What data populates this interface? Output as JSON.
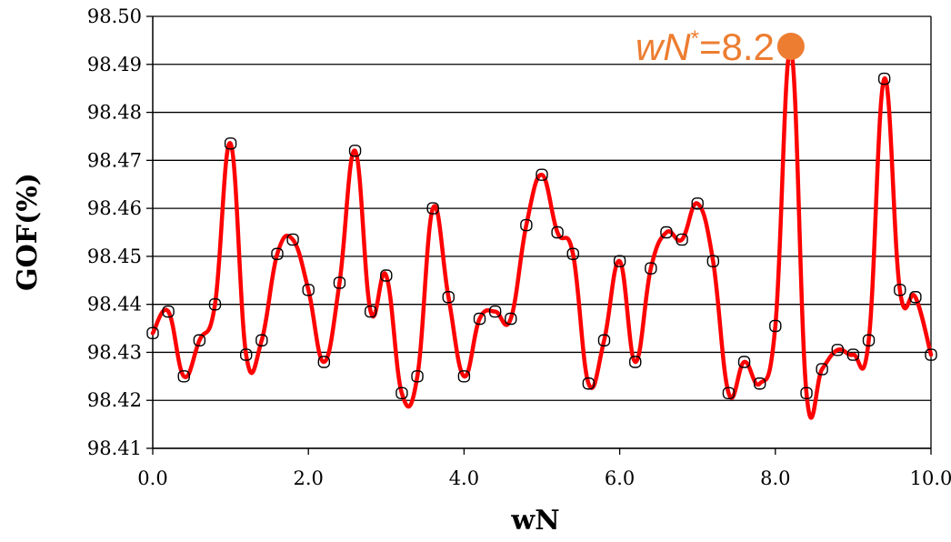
{
  "chart_data": {
    "type": "line",
    "xlabel": "wN",
    "ylabel": "GOF(%)",
    "xlim": [
      0,
      10
    ],
    "ylim": [
      98.41,
      98.5
    ],
    "x_ticks": [
      "0.0",
      "2.0",
      "4.0",
      "6.0",
      "8.0",
      "10.0"
    ],
    "y_ticks": [
      "98.41",
      "98.42",
      "98.43",
      "98.44",
      "98.45",
      "98.46",
      "98.47",
      "98.48",
      "98.49",
      "98.50"
    ],
    "grid": "horizontal",
    "line_color": "#FF0000",
    "marker_color": "#000000",
    "series": [
      {
        "x": [
          0.0,
          0.2,
          0.4,
          0.6,
          0.8,
          1.0,
          1.2,
          1.4,
          1.6,
          1.8,
          2.0,
          2.2,
          2.4,
          2.6,
          2.8,
          3.0,
          3.2,
          3.4,
          3.6,
          3.8,
          4.0,
          4.2,
          4.4,
          4.6,
          4.8,
          5.0,
          5.2,
          5.4,
          5.6,
          5.8,
          6.0,
          6.2,
          6.4,
          6.6,
          6.8,
          7.0,
          7.2,
          7.4,
          7.6,
          7.8,
          8.0,
          8.2,
          8.4,
          8.6,
          8.8,
          9.0,
          9.2,
          9.4,
          9.6,
          9.8,
          10.0
        ],
        "y": [
          98.434,
          98.4385,
          98.425,
          98.4325,
          98.44,
          98.4735,
          98.4295,
          98.4325,
          98.4505,
          98.4535,
          98.443,
          98.428,
          98.4445,
          98.472,
          98.4385,
          98.446,
          98.4215,
          98.425,
          98.46,
          98.4415,
          98.425,
          98.437,
          98.4385,
          98.437,
          98.4565,
          98.467,
          98.455,
          98.4505,
          98.4235,
          98.4325,
          98.449,
          98.428,
          98.4475,
          98.455,
          98.4535,
          98.461,
          98.449,
          98.4215,
          98.428,
          98.4235,
          98.4355,
          98.493,
          98.4215,
          98.4265,
          98.4305,
          98.4295,
          98.4325,
          98.487,
          98.443,
          98.4415,
          98.4295
        ]
      }
    ],
    "annotation": {
      "text_italic": "wN",
      "superscript": "*",
      "text_rest": "=8.2",
      "x": 8.2,
      "y": 98.493,
      "color": "#ED7D31"
    }
  }
}
